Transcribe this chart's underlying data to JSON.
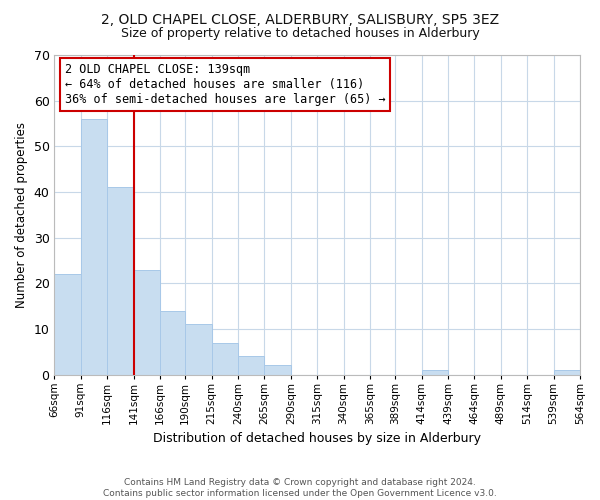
{
  "title": "2, OLD CHAPEL CLOSE, ALDERBURY, SALISBURY, SP5 3EZ",
  "subtitle": "Size of property relative to detached houses in Alderbury",
  "xlabel": "Distribution of detached houses by size in Alderbury",
  "ylabel": "Number of detached properties",
  "bar_color": "#c8ddf0",
  "bar_edge_color": "#a8c8e8",
  "reference_line_x": 141,
  "reference_line_color": "#cc0000",
  "annotation_lines": [
    "2 OLD CHAPEL CLOSE: 139sqm",
    "← 64% of detached houses are smaller (116)",
    "36% of semi-detached houses are larger (65) →"
  ],
  "annotation_box_color": "#cc0000",
  "bin_edges": [
    66,
    91,
    116,
    141,
    166,
    190,
    215,
    240,
    265,
    290,
    315,
    340,
    365,
    389,
    414,
    439,
    464,
    489,
    514,
    539,
    564
  ],
  "bar_heights": [
    22,
    56,
    41,
    23,
    14,
    11,
    7,
    4,
    2,
    0,
    0,
    0,
    0,
    0,
    1,
    0,
    0,
    0,
    0,
    1
  ],
  "ylim": [
    0,
    70
  ],
  "yticks": [
    0,
    10,
    20,
    30,
    40,
    50,
    60,
    70
  ],
  "footer_text": "Contains HM Land Registry data © Crown copyright and database right 2024.\nContains public sector information licensed under the Open Government Licence v3.0.",
  "background_color": "#ffffff",
  "grid_color": "#c8d8e8"
}
